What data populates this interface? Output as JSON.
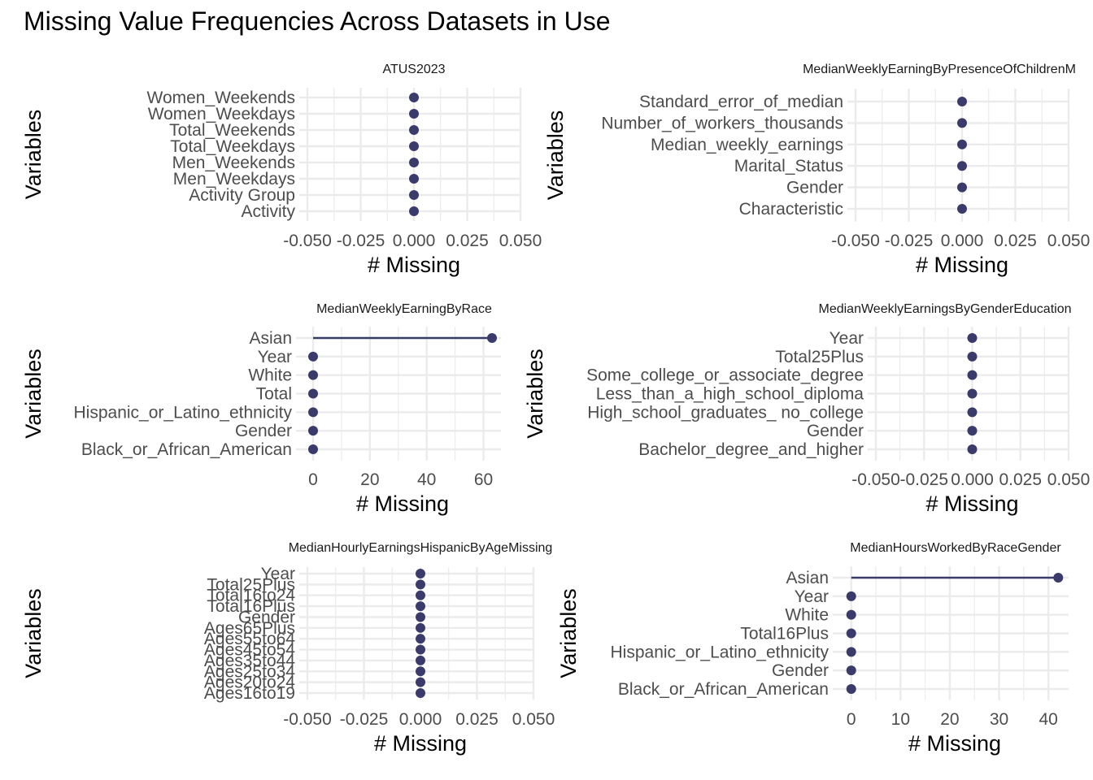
{
  "title": "Missing Value Frequencies Across Datasets in Use",
  "colors": {
    "point": "#3b3b6b",
    "grid": "#ebebeb"
  },
  "chart_data": [
    {
      "type": "scatter",
      "title": "ATUS2023",
      "xlabel": "# Missing",
      "ylabel": "Variables",
      "categories": [
        "Women_Weekends",
        "Women_Weekdays",
        "Total_Weekends",
        "Total_Weekdays",
        "Men_Weekends",
        "Men_Weekdays",
        "Activity Group",
        "Activity"
      ],
      "values": [
        0,
        0,
        0,
        0,
        0,
        0,
        0,
        0
      ],
      "xlim": [
        -0.05,
        0.05
      ],
      "xticks": [
        "-0.050",
        "-0.025",
        "0.000",
        "0.025",
        "0.050"
      ],
      "xtick_values": [
        -0.05,
        -0.025,
        0,
        0.025,
        0.05
      ],
      "grid": true
    },
    {
      "type": "scatter",
      "title": "MedianWeeklyEarningByPresenceOfChildrenM",
      "xlabel": "# Missing",
      "ylabel": "Variables",
      "categories": [
        "Standard_error_of_median",
        "Number_of_workers_thousands",
        "Median_weekly_earnings",
        "Marital_Status",
        "Gender",
        "Characteristic"
      ],
      "values": [
        0,
        0,
        0,
        0,
        0,
        0
      ],
      "xlim": [
        -0.05,
        0.05
      ],
      "xticks": [
        "-0.050",
        "-0.025",
        "0.000",
        "0.025",
        "0.050"
      ],
      "xtick_values": [
        -0.05,
        -0.025,
        0,
        0.025,
        0.05
      ],
      "grid": true
    },
    {
      "type": "scatter",
      "title": "MedianWeeklyEarningByRace",
      "xlabel": "# Missing",
      "ylabel": "Variables",
      "categories": [
        "Asian",
        "Year",
        "White",
        "Total",
        "Hispanic_or_Latino_ethnicity",
        "Gender",
        "Black_or_African_American"
      ],
      "values": [
        63,
        0,
        0,
        0,
        0,
        0,
        0
      ],
      "xlim": [
        -3.15,
        66.15
      ],
      "xticks": [
        "0",
        "20",
        "40",
        "60"
      ],
      "xtick_values": [
        0,
        20,
        40,
        60
      ],
      "grid": true
    },
    {
      "type": "scatter",
      "title": "MedianWeeklyEarningsByGenderEducation",
      "xlabel": "# Missing",
      "ylabel": "Variables",
      "categories": [
        "Year",
        "Total25Plus",
        "Some_college_or_associate_degree",
        "Less_than_a_high_school_diploma",
        "High_school_graduates_ no_college",
        "Gender",
        "Bachelor_degree_and_higher"
      ],
      "values": [
        0,
        0,
        0,
        0,
        0,
        0,
        0
      ],
      "xlim": [
        -0.05,
        0.05
      ],
      "xticks": [
        "-0.050",
        "-0.025",
        "0.000",
        "0.025",
        "0.050"
      ],
      "xtick_values": [
        -0.05,
        -0.025,
        0,
        0.025,
        0.05
      ],
      "grid": true
    },
    {
      "type": "scatter",
      "title": "MedianHourlyEarningsHispanicByAgeMissing",
      "xlabel": "# Missing",
      "ylabel": "Variables",
      "categories": [
        "Year",
        "Total25Plus",
        "Total16to24",
        "Total16Plus",
        "Gender",
        "Ages65Plus",
        "Ages55to64",
        "Ages45to54",
        "Ages35to44",
        "Ages25to34",
        "Ages20to24",
        "Ages16to19"
      ],
      "values": [
        0,
        0,
        0,
        0,
        0,
        0,
        0,
        0,
        0,
        0,
        0,
        0
      ],
      "xlim": [
        -0.05,
        0.05
      ],
      "xticks": [
        "-0.050",
        "-0.025",
        "0.000",
        "0.025",
        "0.050"
      ],
      "xtick_values": [
        -0.05,
        -0.025,
        0,
        0.025,
        0.05
      ],
      "grid": true
    },
    {
      "type": "scatter",
      "title": "MedianHoursWorkedByRaceGender",
      "xlabel": "# Missing",
      "ylabel": "Variables",
      "categories": [
        "Asian",
        "Year",
        "White",
        "Total16Plus",
        "Hispanic_or_Latino_ethnicity",
        "Gender",
        "Black_or_African_American"
      ],
      "values": [
        42,
        0,
        0,
        0,
        0,
        0,
        0
      ],
      "xlim": [
        -2.1,
        44.1
      ],
      "xticks": [
        "0",
        "10",
        "20",
        "30",
        "40"
      ],
      "xtick_values": [
        0,
        10,
        20,
        30,
        40
      ],
      "grid": true
    }
  ]
}
